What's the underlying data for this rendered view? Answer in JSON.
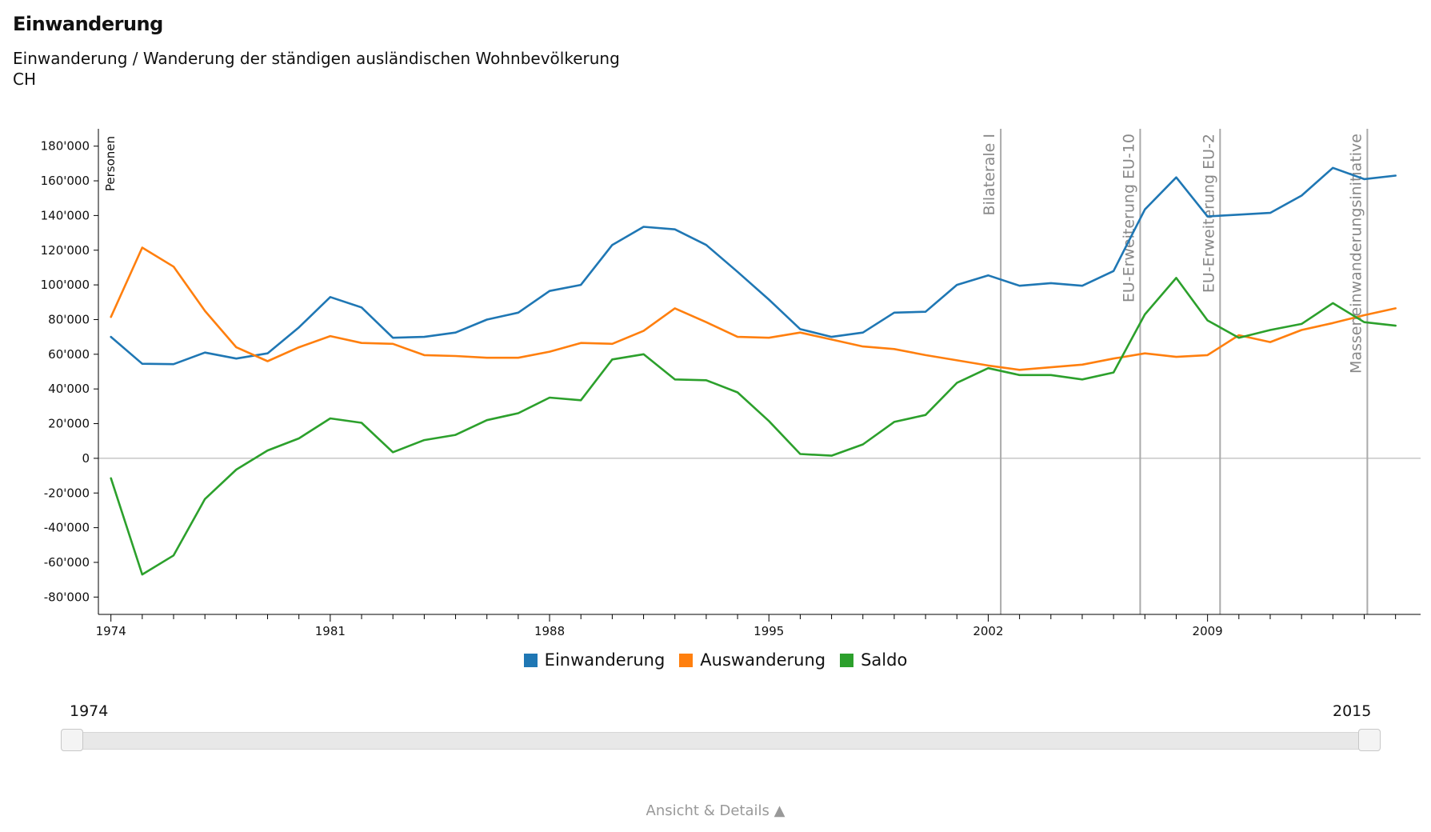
{
  "header": {
    "title": "Einwanderung",
    "subtitle_line1": "Einwanderung / Wanderung der ständigen ausländischen Wohnbevölkerung",
    "subtitle_line2": "CH"
  },
  "colors": {
    "einwanderung": "#1f77b4",
    "auswanderung": "#ff7f0e",
    "saldo": "#2ca02c",
    "event_line": "#aaaaaa",
    "axis": "#000000"
  },
  "chart_data": {
    "type": "line",
    "ylabel": "Personen",
    "xlabel": "",
    "ylim": [
      -90000,
      190000
    ],
    "xlim": [
      1973.6,
      2015.8
    ],
    "x_ticks": [
      1974,
      1981,
      1988,
      1995,
      2002,
      2009
    ],
    "x_tick_labels": [
      "1974",
      "1981",
      "1988",
      "1995",
      "2002",
      "2009"
    ],
    "y_ticks": [
      180000,
      160000,
      140000,
      120000,
      100000,
      80000,
      60000,
      40000,
      20000,
      0,
      -20000,
      -40000,
      -60000,
      -80000
    ],
    "y_tick_labels": [
      "180'000",
      "160'000",
      "140'000",
      "120'000",
      "100'000",
      "80'000",
      "60'000",
      "40'000",
      "20'000",
      "0",
      "-20'000",
      "-40'000",
      "-60'000",
      "-80'000"
    ],
    "x": [
      1974,
      1975,
      1976,
      1977,
      1978,
      1979,
      1980,
      1981,
      1982,
      1983,
      1984,
      1985,
      1986,
      1987,
      1988,
      1989,
      1990,
      1991,
      1992,
      1993,
      1994,
      1995,
      1996,
      1997,
      1998,
      1999,
      2000,
      2001,
      2002,
      2003,
      2004,
      2005,
      2006,
      2007,
      2008,
      2009,
      2010,
      2011,
      2012,
      2013,
      2014,
      2015
    ],
    "series": [
      {
        "name": "Einwanderung",
        "color": "#1f77b4",
        "values": [
          70000,
          54500,
          54300,
          61000,
          57500,
          60500,
          75500,
          93000,
          87000,
          69500,
          70000,
          72500,
          80000,
          84000,
          96500,
          100000,
          123000,
          133500,
          132000,
          123000,
          107500,
          91500,
          74500,
          70000,
          72500,
          84000,
          84500,
          100000,
          105500,
          99500,
          101000,
          99500,
          108000,
          143500,
          162000,
          139500,
          140500,
          141500,
          151500,
          167500,
          161000,
          163000
        ]
      },
      {
        "name": "Auswanderung",
        "color": "#ff7f0e",
        "values": [
          81500,
          121500,
          110500,
          85000,
          64000,
          56000,
          64000,
          70500,
          66500,
          66000,
          59500,
          59000,
          58000,
          58000,
          61500,
          66500,
          66000,
          73500,
          86500,
          78500,
          70000,
          69500,
          72500,
          68500,
          64500,
          63000,
          59500,
          56500,
          53500,
          51000,
          52500,
          54000,
          57500,
          60500,
          58500,
          59500,
          71000,
          67000,
          74000,
          78000,
          82500,
          86500
        ]
      },
      {
        "name": "Saldo",
        "color": "#2ca02c",
        "values": [
          -11500,
          -67000,
          -56000,
          -23500,
          -6500,
          4500,
          11500,
          23000,
          20500,
          3500,
          10500,
          13500,
          22000,
          26000,
          35000,
          33500,
          57000,
          60000,
          45500,
          45000,
          38000,
          21500,
          2500,
          1500,
          8000,
          21000,
          25000,
          43500,
          52000,
          48000,
          48000,
          45500,
          49500,
          83000,
          104000,
          79500,
          69500,
          74000,
          77500,
          89500,
          78500,
          76500
        ]
      }
    ],
    "events": [
      {
        "year": 2002.4,
        "label": "Bilaterale I"
      },
      {
        "year": 2006.85,
        "label": "EU-Erweiterung EU-10"
      },
      {
        "year": 2009.4,
        "label": "EU-Erweiterung EU-2"
      },
      {
        "year": 2014.1,
        "label": "Masseneinwanderungsinitiative"
      }
    ],
    "legend_position": "bottom-center",
    "grid": false
  },
  "legend": {
    "items": [
      {
        "label": "Einwanderung",
        "color": "#1f77b4"
      },
      {
        "label": "Auswanderung",
        "color": "#ff7f0e"
      },
      {
        "label": "Saldo",
        "color": "#2ca02c"
      }
    ]
  },
  "range_slider": {
    "min_label": "1974",
    "max_label": "2015",
    "min_value": 1974,
    "max_value": 2015
  },
  "footer": {
    "details_label": "Ansicht & Details ▲"
  }
}
